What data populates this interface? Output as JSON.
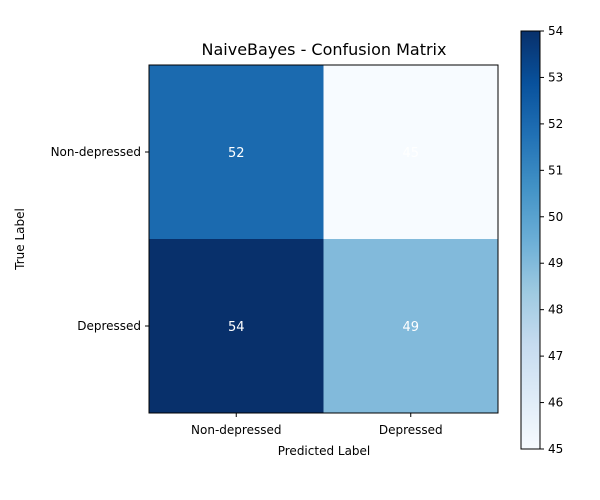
{
  "chart_data": {
    "type": "heatmap",
    "title": "NaiveBayes - Confusion Matrix",
    "xlabel": "Predicted Label",
    "ylabel": "True Label",
    "x_categories": [
      "Non-depressed",
      "Depressed"
    ],
    "y_categories": [
      "Non-depressed",
      "Depressed"
    ],
    "values": [
      [
        52,
        45
      ],
      [
        54,
        49
      ]
    ],
    "colorbar": {
      "range": [
        45,
        54
      ],
      "ticks": [
        "45",
        "46",
        "47",
        "48",
        "49",
        "50",
        "51",
        "52",
        "53",
        "54"
      ]
    },
    "colormap": "Blues",
    "grid": false
  }
}
